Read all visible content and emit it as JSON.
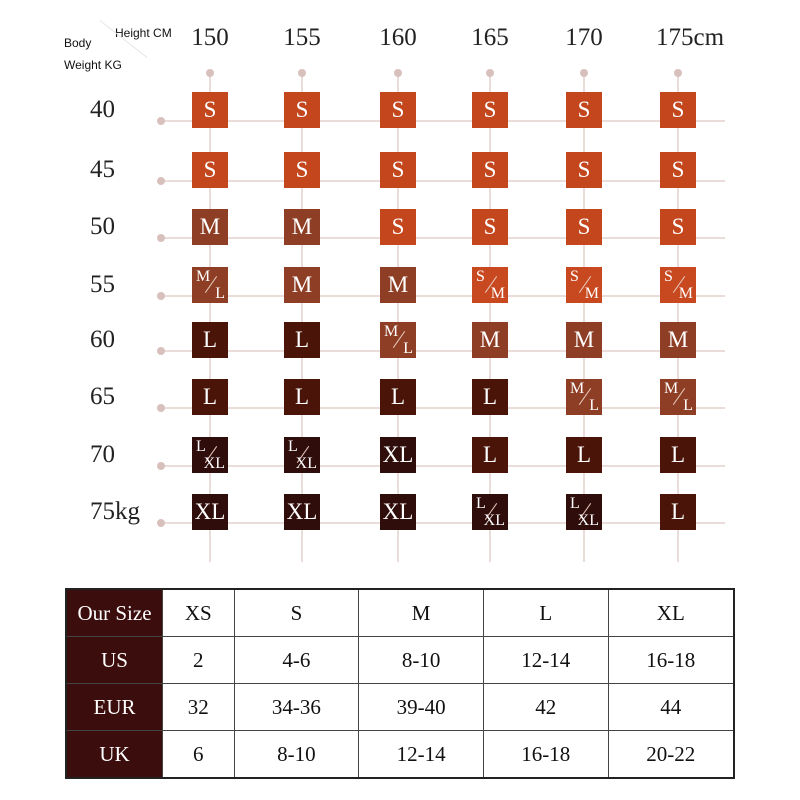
{
  "corner": {
    "body": "Body",
    "height": "Height CM",
    "weight": "Weight  KG"
  },
  "heights": [
    "150",
    "155",
    "160",
    "165",
    "170",
    "175cm"
  ],
  "weights": [
    "40",
    "45",
    "50",
    "55",
    "60",
    "65",
    "70",
    "75kg"
  ],
  "colors": {
    "S": "#c3461d",
    "S/M": "#c8491f",
    "M": "#8d3e24",
    "M/L": "#8d3e24",
    "L": "#4a1408",
    "L/XL": "#2f0d0b",
    "XL": "#2f0d0b",
    "table_header": "#3b0d0c"
  },
  "grid": [
    [
      "S",
      "S",
      "S",
      "S",
      "S",
      "S"
    ],
    [
      "S",
      "S",
      "S",
      "S",
      "S",
      "S"
    ],
    [
      "M",
      "M",
      "S",
      "S",
      "S",
      "S"
    ],
    [
      "M/L",
      "M",
      "M",
      "S/M",
      "S/M",
      "S/M"
    ],
    [
      "L",
      "L",
      "M/L",
      "M",
      "M",
      "M"
    ],
    [
      "L",
      "L",
      "L",
      "L",
      "M/L",
      "M/L"
    ],
    [
      "L/XL",
      "L/XL",
      "XL",
      "L",
      "L",
      "L"
    ],
    [
      "XL",
      "XL",
      "XL",
      "L/XL",
      "L/XL",
      "L"
    ]
  ],
  "size_table": {
    "rows": [
      {
        "label": "Our Size",
        "values": [
          "XS",
          "S",
          "M",
          "L",
          "XL"
        ]
      },
      {
        "label": "US",
        "values": [
          "2",
          "4-6",
          "8-10",
          "12-14",
          "16-18"
        ]
      },
      {
        "label": "EUR",
        "values": [
          "32",
          "34-36",
          "39-40",
          "42",
          "44"
        ]
      },
      {
        "label": "UK",
        "values": [
          "6",
          "8-10",
          "12-14",
          "16-18",
          "20-22"
        ]
      }
    ]
  }
}
